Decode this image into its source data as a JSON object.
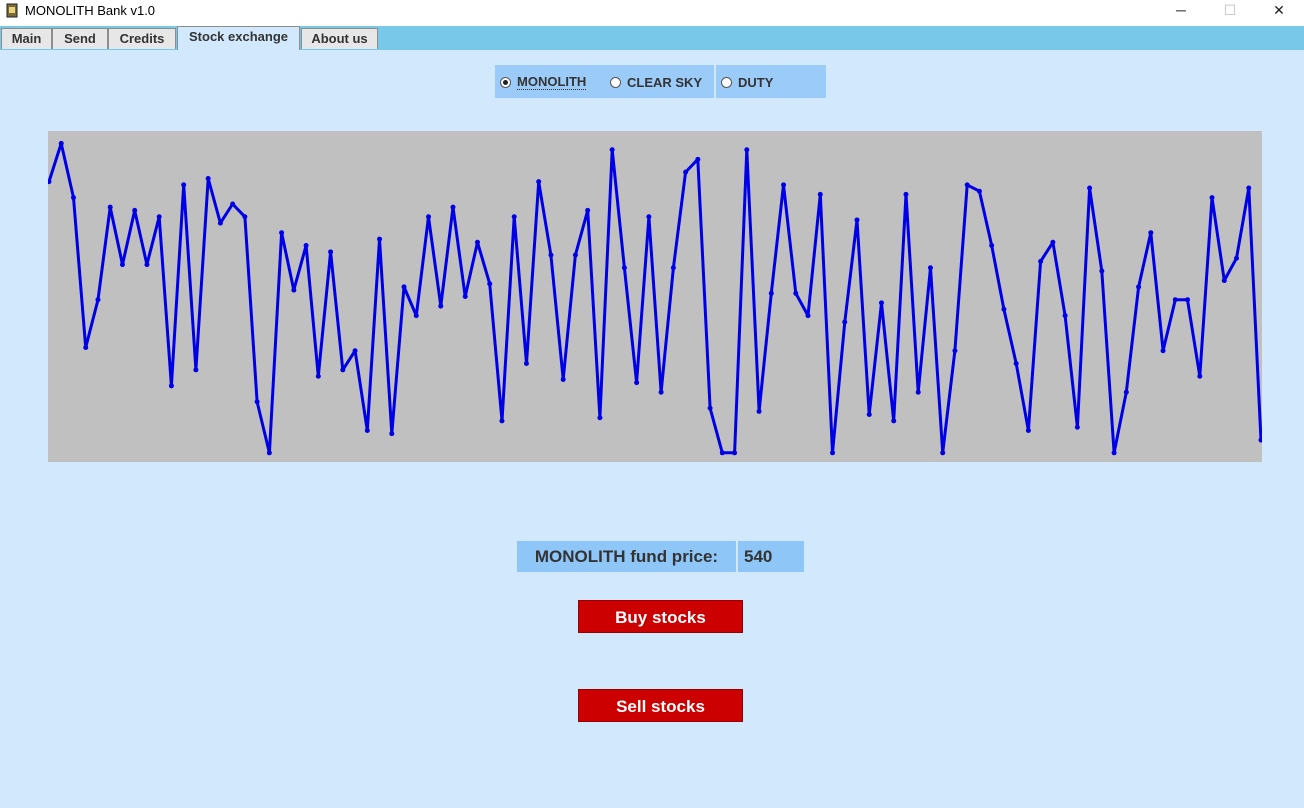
{
  "window": {
    "title": "MONOLITH Bank v1.0",
    "icon": "app-logo-icon",
    "controls": {
      "minimize": "─",
      "maximize": "☐",
      "close": "✕"
    }
  },
  "tabs": [
    {
      "label": "Main",
      "active": false
    },
    {
      "label": "Send",
      "active": false
    },
    {
      "label": "Credits",
      "active": false
    },
    {
      "label": "Stock exchange",
      "active": true
    },
    {
      "label": "About us",
      "active": false
    }
  ],
  "funds": {
    "options": [
      "MONOLITH",
      "CLEAR SKY",
      "DUTY"
    ],
    "selected": "MONOLITH"
  },
  "chart_data": {
    "type": "line",
    "line_color": "#0000e6",
    "background": "#c0c0c0",
    "values": [
      86,
      98,
      81,
      34,
      49,
      78,
      60,
      77,
      60,
      75,
      22,
      85,
      27,
      87,
      73,
      79,
      75,
      17,
      1,
      70,
      52,
      66,
      25,
      64,
      27,
      33,
      8,
      68,
      7,
      53,
      44,
      75,
      47,
      78,
      50,
      67,
      54,
      11,
      75,
      29,
      86,
      63,
      24,
      63,
      77,
      12,
      96,
      59,
      23,
      75,
      20,
      59,
      89,
      93,
      15,
      1,
      1,
      96,
      14,
      51,
      85,
      51,
      44,
      82,
      1,
      42,
      74,
      13,
      48,
      11,
      82,
      20,
      59,
      1,
      33,
      85,
      83,
      66,
      46,
      29,
      8,
      61,
      67,
      44,
      9,
      84,
      58,
      1,
      20,
      53,
      70,
      33,
      49,
      49,
      25,
      81,
      55,
      62,
      84,
      5
    ],
    "ylim": [
      0,
      100
    ]
  },
  "price": {
    "label": "MONOLITH fund price:",
    "value": "540"
  },
  "actions": {
    "buy": "Buy stocks",
    "sell": "Sell stocks",
    "color": "#cc0000"
  }
}
